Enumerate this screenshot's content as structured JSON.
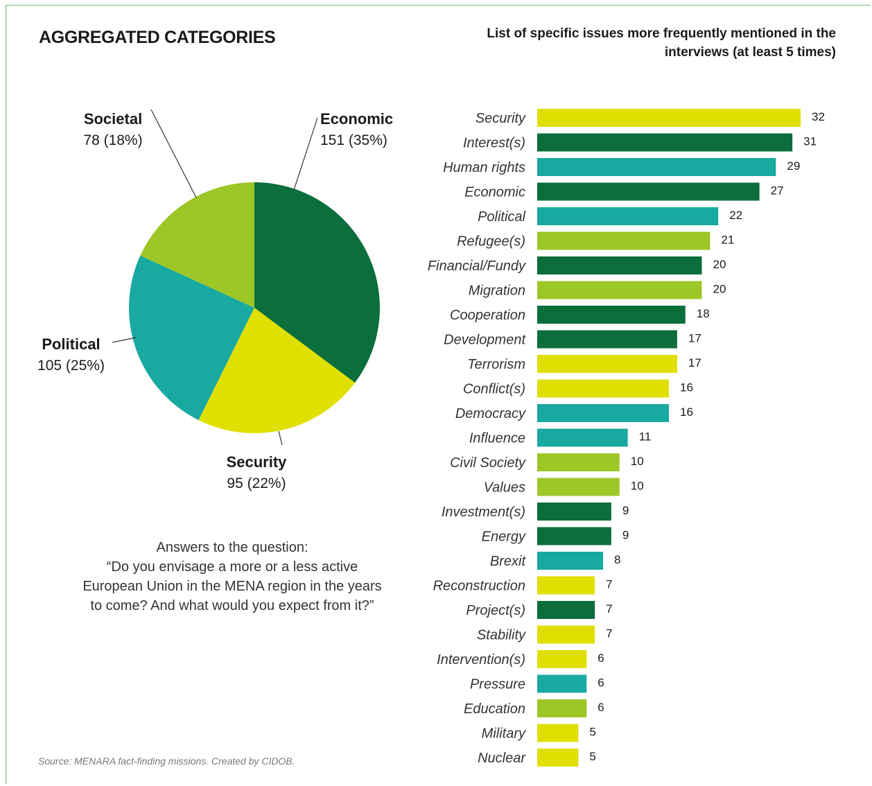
{
  "header": {
    "left_title": "AGGREGATED CATEGORIES",
    "right_title": "List of specific issues more frequently mentioned  in the interviews (at least 5 times)"
  },
  "colors": {
    "economic": "#0b6e3b",
    "security": "#dfe000",
    "political": "#18a9a1",
    "societal": "#9dc627",
    "leader": "#333333"
  },
  "question": {
    "line1": "Answers to the question:",
    "line2": "“Do you envisage a more or a less active European Union in the MENA region in the years to come? And what would you expect from it?”"
  },
  "source": "Source: MENARA fact-finding missions. Created by CIDOB.",
  "chart_data": [
    {
      "type": "pie",
      "title": "AGGREGATED CATEGORIES",
      "slices": [
        {
          "name": "Economic",
          "value": 151,
          "percent": 35,
          "label": "151 (35%)",
          "color": "#0b6e3b"
        },
        {
          "name": "Security",
          "value": 95,
          "percent": 22,
          "label": "95 (22%)",
          "color": "#dfe000"
        },
        {
          "name": "Political",
          "value": 105,
          "percent": 25,
          "label": "105 (25%)",
          "color": "#18a9a1"
        },
        {
          "name": "Societal",
          "value": 78,
          "percent": 18,
          "label": "78 (18%)",
          "color": "#9dc627"
        }
      ]
    },
    {
      "type": "bar",
      "orientation": "horizontal",
      "title": "List of specific issues more frequently mentioned  in the interviews (at least 5 times)",
      "xlim": [
        0,
        32
      ],
      "grid": false,
      "categories": [
        "Security",
        "Interest(s)",
        "Human rights",
        "Economic",
        "Political",
        "Refugee(s)",
        "Financial/Fundy",
        "Migration",
        "Cooperation",
        "Development",
        "Terrorism",
        "Conflict(s)",
        "Democracy",
        "Influence",
        "Civil Society",
        "Values",
        "Investment(s)",
        "Energy",
        "Brexit",
        "Reconstruction",
        "Project(s)",
        "Stability",
        "Intervention(s)",
        "Pressure",
        "Education",
        "Military",
        "Nuclear"
      ],
      "values": [
        32,
        31,
        29,
        27,
        22,
        21,
        20,
        20,
        18,
        17,
        17,
        16,
        16,
        11,
        10,
        10,
        9,
        9,
        8,
        7,
        7,
        7,
        6,
        6,
        6,
        5,
        5
      ],
      "groups": [
        "security",
        "economic",
        "political",
        "economic",
        "political",
        "societal",
        "economic",
        "societal",
        "economic",
        "economic",
        "security",
        "security",
        "political",
        "political",
        "societal",
        "societal",
        "economic",
        "economic",
        "political",
        "security",
        "economic",
        "security",
        "security",
        "political",
        "societal",
        "security",
        "security"
      ]
    }
  ]
}
